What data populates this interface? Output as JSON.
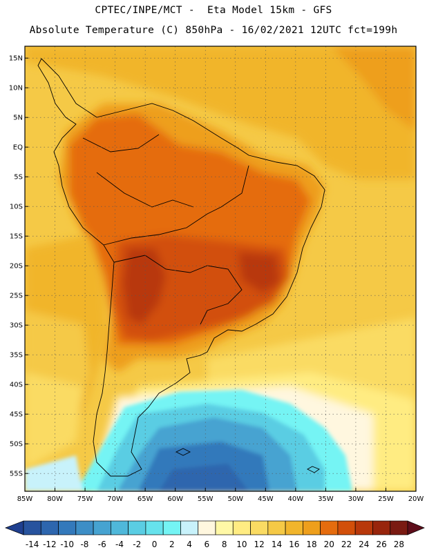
{
  "header": {
    "line1": "CPTEC/INPE/MCT -  Eta Model 15km - GFS",
    "line2": "Absolute Temperature (C) 850hPa - 16/02/2021 12UTC fct=199h"
  },
  "map": {
    "lon_range": [
      -85,
      -20
    ],
    "lat_range": [
      -58,
      17
    ],
    "lat_ticks": [
      {
        "value": 15,
        "label": "15N"
      },
      {
        "value": 10,
        "label": "10N"
      },
      {
        "value": 5,
        "label": "5N"
      },
      {
        "value": 0,
        "label": "EQ"
      },
      {
        "value": -5,
        "label": "5S"
      },
      {
        "value": -10,
        "label": "10S"
      },
      {
        "value": -15,
        "label": "15S"
      },
      {
        "value": -20,
        "label": "20S"
      },
      {
        "value": -25,
        "label": "25S"
      },
      {
        "value": -30,
        "label": "30S"
      },
      {
        "value": -35,
        "label": "35S"
      },
      {
        "value": -40,
        "label": "40S"
      },
      {
        "value": -45,
        "label": "45S"
      },
      {
        "value": -50,
        "label": "50S"
      },
      {
        "value": -55,
        "label": "55S"
      }
    ],
    "lon_ticks": [
      {
        "value": -85,
        "label": "85W"
      },
      {
        "value": -80,
        "label": "80W"
      },
      {
        "value": -75,
        "label": "75W"
      },
      {
        "value": -70,
        "label": "70W"
      },
      {
        "value": -65,
        "label": "65W"
      },
      {
        "value": -60,
        "label": "60W"
      },
      {
        "value": -55,
        "label": "55W"
      },
      {
        "value": -50,
        "label": "50W"
      },
      {
        "value": -45,
        "label": "45W"
      },
      {
        "value": -40,
        "label": "40W"
      },
      {
        "value": -35,
        "label": "35W"
      },
      {
        "value": -30,
        "label": "30W"
      },
      {
        "value": -25,
        "label": "25W"
      },
      {
        "value": -20,
        "label": "20W"
      }
    ],
    "grid": "dotted",
    "colorbar": {
      "labels": [
        "-14",
        "-12",
        "-10",
        "-8",
        "-6",
        "-4",
        "-2",
        "0",
        "2",
        "4",
        "6",
        "8",
        "10",
        "12",
        "14",
        "16",
        "18",
        "20",
        "22",
        "24",
        "26",
        "28"
      ],
      "colors": [
        "#1f3f8f",
        "#27539e",
        "#2d66ae",
        "#3379bb",
        "#3d8ec6",
        "#46a3d1",
        "#4fb8da",
        "#5acde3",
        "#66e2ec",
        "#74f4f4",
        "#c8f2fb",
        "#fff7df",
        "#fff8a6",
        "#ffec82",
        "#fadb63",
        "#f5c946",
        "#f1b52c",
        "#ee9f1c",
        "#e56c0e",
        "#d24f0a",
        "#b8380b",
        "#98250c",
        "#7a1a12",
        "#5e0d1a"
      ]
    }
  }
}
